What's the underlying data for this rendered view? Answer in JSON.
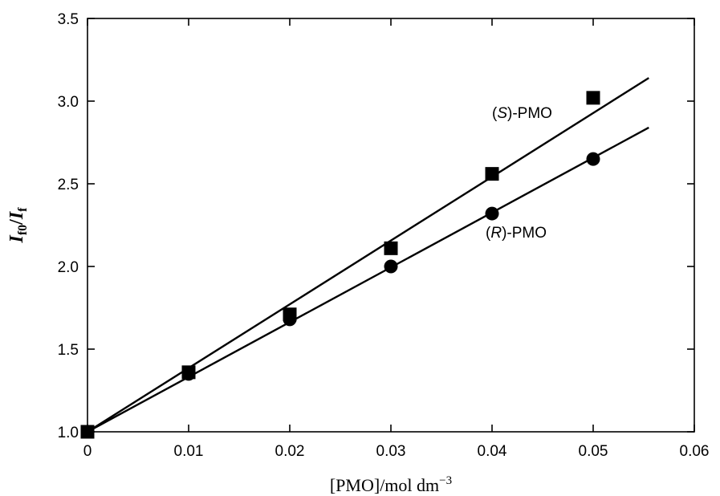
{
  "chart_data": {
    "type": "scatter",
    "xlabel": {
      "main": "[PMO]/mol dm",
      "sup": "−3"
    },
    "ylabel": {
      "i1": "I",
      "s1": "f0",
      "slash": "/",
      "i2": "I",
      "s2": "f"
    },
    "xlim": [
      0,
      0.06
    ],
    "ylim": [
      1.0,
      3.5
    ],
    "x_ticks": [
      0,
      0.01,
      0.02,
      0.03,
      0.04,
      0.05,
      0.06
    ],
    "x_tick_labels": [
      "0",
      "0.01",
      "0.02",
      "0.03",
      "0.04",
      "0.05",
      "0.06"
    ],
    "y_ticks": [
      1.0,
      1.5,
      2.0,
      2.5,
      3.0,
      3.5
    ],
    "y_tick_labels": [
      "1.0",
      "1.5",
      "2.0",
      "2.5",
      "3.0",
      "3.5"
    ],
    "grid": false,
    "series": [
      {
        "name": "(S)-PMO",
        "label_prefix": "(",
        "label_italic": "S",
        "label_suffix": ")-PMO",
        "marker": "square",
        "x": [
          0,
          0.01,
          0.02,
          0.03,
          0.04,
          0.05
        ],
        "y": [
          1.0,
          1.36,
          1.71,
          2.11,
          2.56,
          3.02
        ],
        "fit_line": {
          "x": [
            0,
            0.0555
          ],
          "y": [
            1.0,
            3.14
          ]
        }
      },
      {
        "name": "(R)-PMO",
        "label_prefix": "(",
        "label_italic": "R",
        "label_suffix": ")-PMO",
        "marker": "circle",
        "x": [
          0,
          0.01,
          0.02,
          0.03,
          0.04,
          0.05
        ],
        "y": [
          1.0,
          1.35,
          1.68,
          2.0,
          2.32,
          2.65
        ],
        "fit_line": {
          "x": [
            0,
            0.0555
          ],
          "y": [
            1.0,
            2.84
          ]
        }
      }
    ],
    "colors": {
      "axis": "#000000",
      "marker": "#000000",
      "line": "#000000"
    }
  }
}
